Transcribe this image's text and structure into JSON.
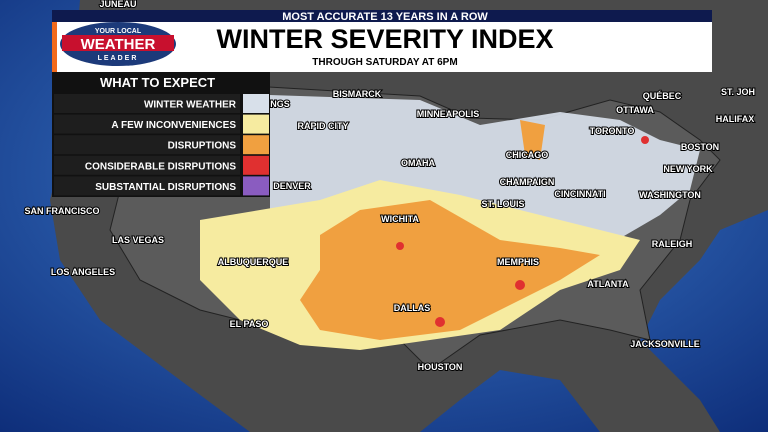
{
  "header": {
    "banner": "MOST ACCURATE 13 YEARS IN A ROW",
    "logo": {
      "top": "YOUR LOCAL",
      "main": "WEATHER",
      "bottom": "LEADER"
    },
    "title": "WINTER SEVERITY INDEX",
    "subtitle": "THROUGH SATURDAY AT 6PM"
  },
  "legend": {
    "title": "WHAT TO EXPECT",
    "items": [
      "WINTER WEATHER",
      "A FEW INCONVENIENCES",
      "DISRUPTIONS",
      "CONSIDERABLE DISRPUTIONS",
      "SUBSTANTIAL DISRUPTIONS"
    ]
  },
  "cities": [
    "JUNEAU",
    "NGS",
    "BISMARCK",
    "MINNEAPOLIS",
    "QUÉBEC",
    "ST. JOH",
    "OTTAWA",
    "HALIFAX",
    "RAPID CITY",
    "TORONTO",
    "BOSTON",
    "CHICAGO",
    "OMAHA",
    "NEW YORK",
    "CHAMPAIGN",
    "CINCINNATI",
    "WASHINGTON",
    "DENVER",
    "ST. LOUIS",
    "SAN FRANCISCO",
    "WICHITA",
    "RALEIGH",
    "LAS VEGAS",
    "ALBUQUERQUE",
    "MEMPHIS",
    "LOS ANGELES",
    "ATLANTA",
    "EL PASO",
    "DALLAS",
    "JACKSONVILLE",
    "HOUSTON"
  ]
}
